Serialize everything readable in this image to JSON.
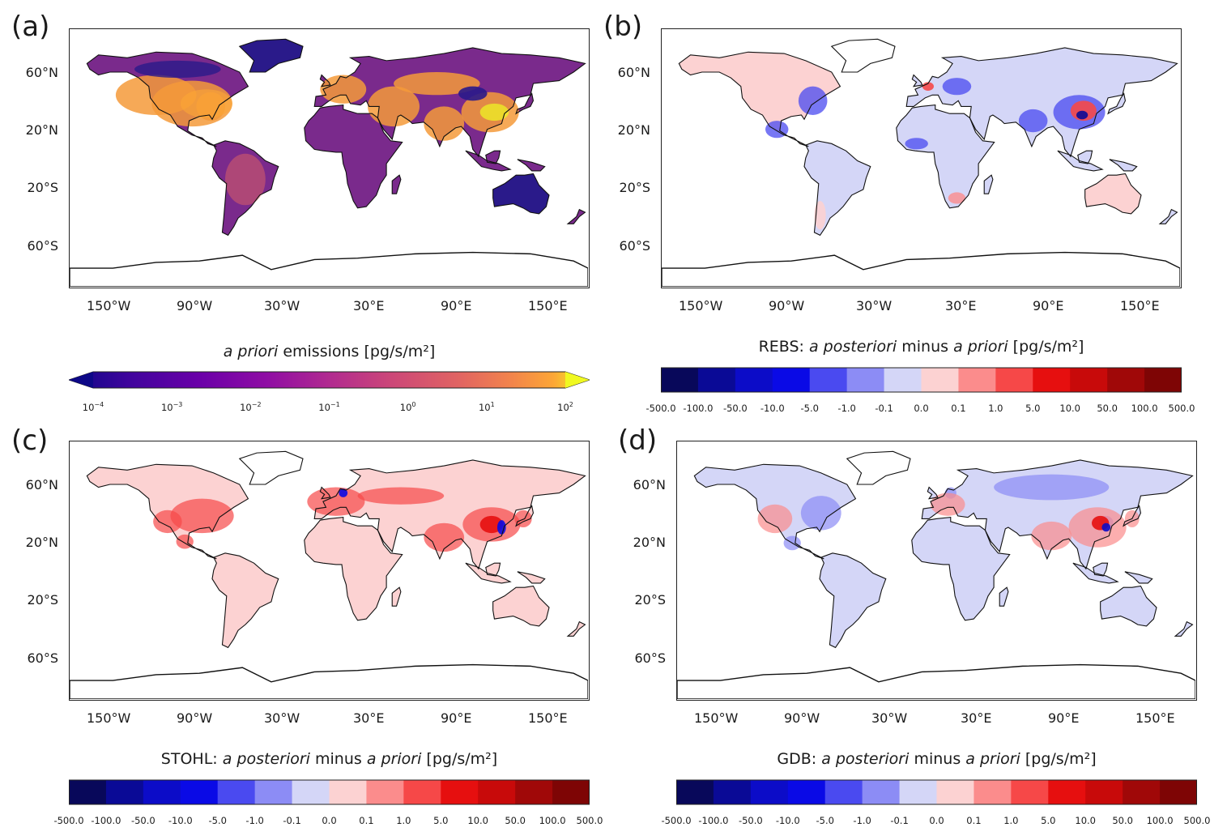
{
  "panels": [
    {
      "label": "(a)",
      "kind": "apriori"
    },
    {
      "label": "(b)",
      "kind": "diff",
      "prefix": "REBS:"
    },
    {
      "label": "(c)",
      "kind": "diff",
      "prefix": "STOHL:"
    },
    {
      "label": "(d)",
      "kind": "diff",
      "prefix": "GDB:"
    }
  ],
  "lat_ticks": [
    "60°N",
    "20°N",
    "20°S",
    "60°S"
  ],
  "lon_ticks": [
    "150°W",
    "90°W",
    "30°W",
    "30°E",
    "90°E",
    "150°E"
  ],
  "apriori_title": {
    "italic": "a priori",
    "rest": " emissions [pg/s/m²]"
  },
  "diff_title": {
    "italic1": "a posteriori",
    "mid": " minus ",
    "italic2": "a priori",
    "unit": " [pg/s/m²]"
  },
  "log_colorbar": {
    "base": "10",
    "exponents": [
      "−4",
      "−3",
      "−2",
      "−1",
      "0",
      "1",
      "2"
    ],
    "colormap": "plasma",
    "extend": "both"
  },
  "diverging_colorbar": {
    "boundaries": [
      "-500.0",
      "-100.0",
      "-50.0",
      "-10.0",
      "-5.0",
      "-1.0",
      "-0.1",
      "0.0",
      "0.1",
      "1.0",
      "5.0",
      "10.0",
      "50.0",
      "100.0",
      "500.0"
    ],
    "colors": [
      "#08085a",
      "#0a0a96",
      "#0c0cc8",
      "#0a0ae6",
      "#4a4af0",
      "#8c8cf5",
      "#d4d6f7",
      "#fcd2d2",
      "#fb8c8c",
      "#f64848",
      "#e60f0f",
      "#c80a0a",
      "#a00808",
      "#7e0505"
    ]
  },
  "land_colors": {
    "apriori_base": "#7a2a8c",
    "apriori_hot": "#f59a3a",
    "apriori_low": "#2a1a8a",
    "diff_neg": "#d4d6f7",
    "diff_pos": "#fcd2d2"
  }
}
